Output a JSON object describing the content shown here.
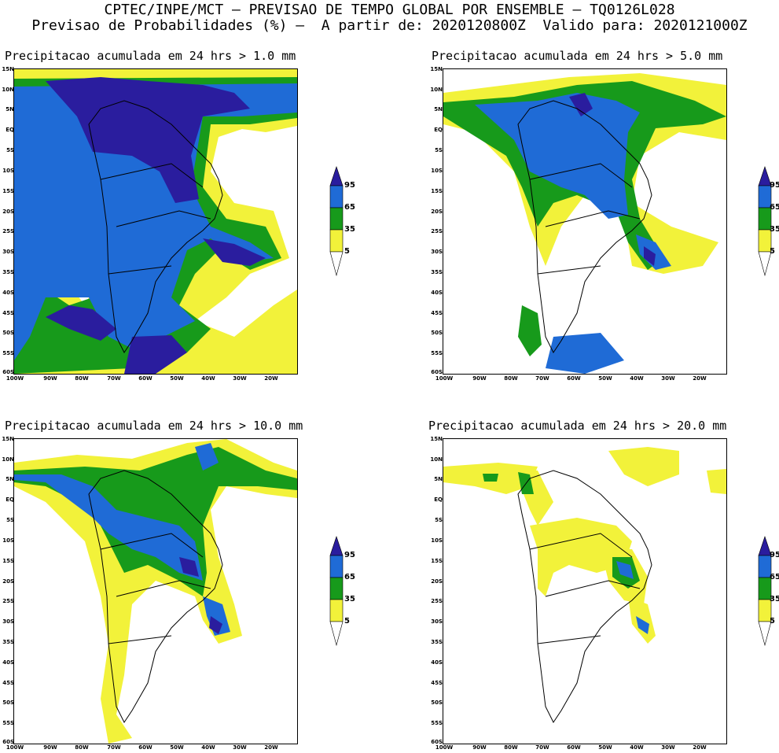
{
  "header": {
    "line1": "CPTEC/INPE/MCT – PREVISAO DE TEMPO GLOBAL POR ENSEMBLE – TQ0126L028",
    "line2": "Previsao de Probabilidades (%) –  A partir de: 2020120800Z  Valido para: 2020121000Z"
  },
  "axis": {
    "lat_labels": [
      "15N",
      "10N",
      "5N",
      "EQ",
      "5S",
      "10S",
      "15S",
      "20S",
      "25S",
      "30S",
      "35S",
      "40S",
      "45S",
      "50S",
      "55S",
      "60S"
    ],
    "lon_labels": [
      "100W",
      "90W",
      "80W",
      "70W",
      "60W",
      "50W",
      "40W",
      "30W",
      "20W"
    ]
  },
  "legend": {
    "levels": [
      "95",
      "65",
      "35",
      "5"
    ],
    "colors": {
      "c95": "#2a1d9e",
      "c65": "#1f6bd6",
      "c35": "#179a1b",
      "c5": "#f2f23a"
    }
  },
  "panels": [
    {
      "title": "Precipitacao acumulada em 24 hrs > 1.0 mm",
      "threshold_mm": 1.0
    },
    {
      "title": "Precipitacao acumulada em 24 hrs > 5.0 mm",
      "threshold_mm": 5.0
    },
    {
      "title": "Precipitacao acumulada em 24 hrs > 10.0 mm",
      "threshold_mm": 10.0
    },
    {
      "title": "Precipitacao acumulada em 24 hrs > 20.0 mm",
      "threshold_mm": 20.0
    }
  ]
}
